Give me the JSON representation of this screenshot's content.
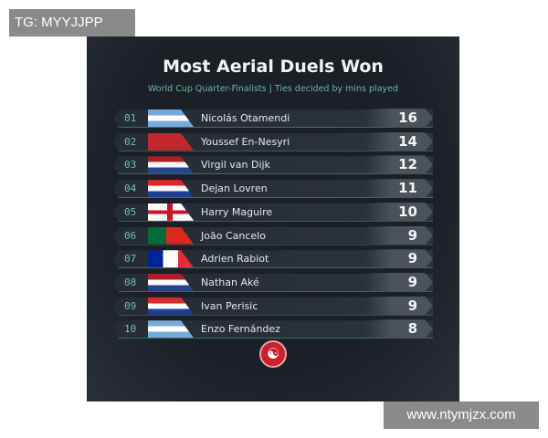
{
  "watermarks": {
    "top_left": "TG: MYYJJPP",
    "bottom_right": "www.ntymjzx.com"
  },
  "title": "Most Aerial Duels Won",
  "subtitle": "World Cup Quarter-Finalists | Ties decided by mins played",
  "rows": [
    {
      "rank": "01",
      "flag": "argentina",
      "name": "Nicolás Otamendi",
      "value": "16"
    },
    {
      "rank": "02",
      "flag": "morocco",
      "name": "Youssef En-Nesyri",
      "value": "14"
    },
    {
      "rank": "03",
      "flag": "netherlands",
      "name": "Virgil van Dijk",
      "value": "12"
    },
    {
      "rank": "04",
      "flag": "croatia",
      "name": "Dejan Lovren",
      "value": "11"
    },
    {
      "rank": "05",
      "flag": "england",
      "name": "Harry Maguire",
      "value": "10"
    },
    {
      "rank": "06",
      "flag": "portugal",
      "name": "João Cancelo",
      "value": "9"
    },
    {
      "rank": "07",
      "flag": "france",
      "name": "Adrien Rabiot",
      "value": "9"
    },
    {
      "rank": "08",
      "flag": "netherlands",
      "name": "Nathan Aké",
      "value": "9"
    },
    {
      "rank": "09",
      "flag": "croatia",
      "name": "Ivan Perisic",
      "value": "9"
    },
    {
      "rank": "10",
      "flag": "argentina",
      "name": "Enzo Fernández",
      "value": "8"
    }
  ],
  "logo_icon": "brand-swirl-logo"
}
